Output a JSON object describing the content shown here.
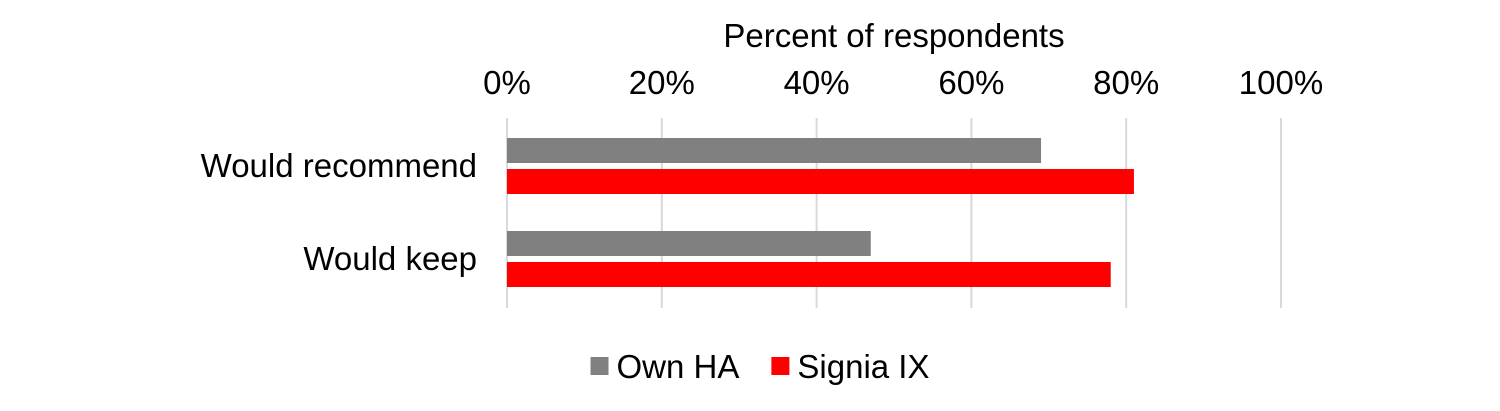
{
  "chart_data": {
    "type": "bar",
    "orientation": "horizontal",
    "title": "",
    "xlabel": "Percent of respondents",
    "ylabel": "",
    "xlim": [
      0,
      100
    ],
    "x_ticks": [
      0,
      20,
      40,
      60,
      80,
      100
    ],
    "x_tick_labels": [
      "0%",
      "20%",
      "40%",
      "60%",
      "80%",
      "100%"
    ],
    "x_axis_position": "top",
    "grid": true,
    "categories": [
      "Would recommend",
      "Would keep"
    ],
    "series": [
      {
        "name": "Own HA",
        "color": "#808080",
        "values": [
          69,
          47
        ]
      },
      {
        "name": "Signia IX",
        "color": "#ff0000",
        "values": [
          81,
          78
        ]
      }
    ],
    "legend": {
      "position": "bottom"
    }
  }
}
